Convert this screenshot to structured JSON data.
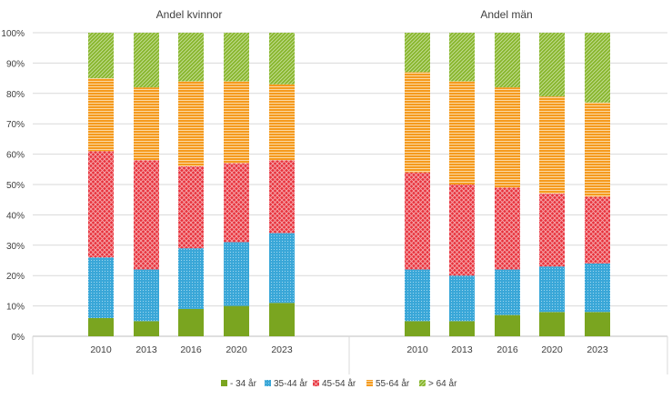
{
  "chart_data": {
    "type": "bar",
    "stacked": true,
    "percent": true,
    "categories": [
      "2010",
      "2013",
      "2016",
      "2020",
      "2023"
    ],
    "y_ticks": [
      "0%",
      "10%",
      "20%",
      "30%",
      "40%",
      "50%",
      "60%",
      "70%",
      "80%",
      "90%",
      "100%"
    ],
    "ylim": [
      0,
      100
    ],
    "grid": true,
    "legend_position": "bottom",
    "legend": [
      {
        "name": "- 34 år",
        "color": "#7aa520",
        "pattern": "solid"
      },
      {
        "name": "35-44 år",
        "color": "#3aa7d8",
        "pattern": "dots"
      },
      {
        "name": "45-54 år",
        "color": "#e8323c",
        "pattern": "crosshatch"
      },
      {
        "name": "55-64 år",
        "color": "#f59a1e",
        "pattern": "horizontal-lines"
      },
      {
        "name": "> 64 år",
        "color": "#86b52a",
        "pattern": "diagonal-lines"
      }
    ],
    "panels": [
      {
        "title": "Andel kvinnor",
        "series": [
          {
            "name": "- 34 år",
            "values": [
              6,
              5,
              9,
              10,
              11
            ]
          },
          {
            "name": "35-44 år",
            "values": [
              20,
              17,
              20,
              21,
              23
            ]
          },
          {
            "name": "45-54 år",
            "values": [
              35,
              36,
              27,
              26,
              24
            ]
          },
          {
            "name": "55-64 år",
            "values": [
              24,
              24,
              28,
              27,
              25
            ]
          },
          {
            "name": "> 64 år",
            "values": [
              15,
              18,
              16,
              16,
              17
            ]
          }
        ]
      },
      {
        "title": "Andel män",
        "series": [
          {
            "name": "- 34 år",
            "values": [
              5,
              5,
              7,
              8,
              8
            ]
          },
          {
            "name": "35-44 år",
            "values": [
              17,
              15,
              15,
              15,
              16
            ]
          },
          {
            "name": "45-54 år",
            "values": [
              32,
              30,
              27,
              24,
              22
            ]
          },
          {
            "name": "55-64 år",
            "values": [
              33,
              34,
              33,
              32,
              31
            ]
          },
          {
            "name": "> 64 år",
            "values": [
              13,
              16,
              18,
              21,
              23
            ]
          }
        ]
      }
    ]
  }
}
